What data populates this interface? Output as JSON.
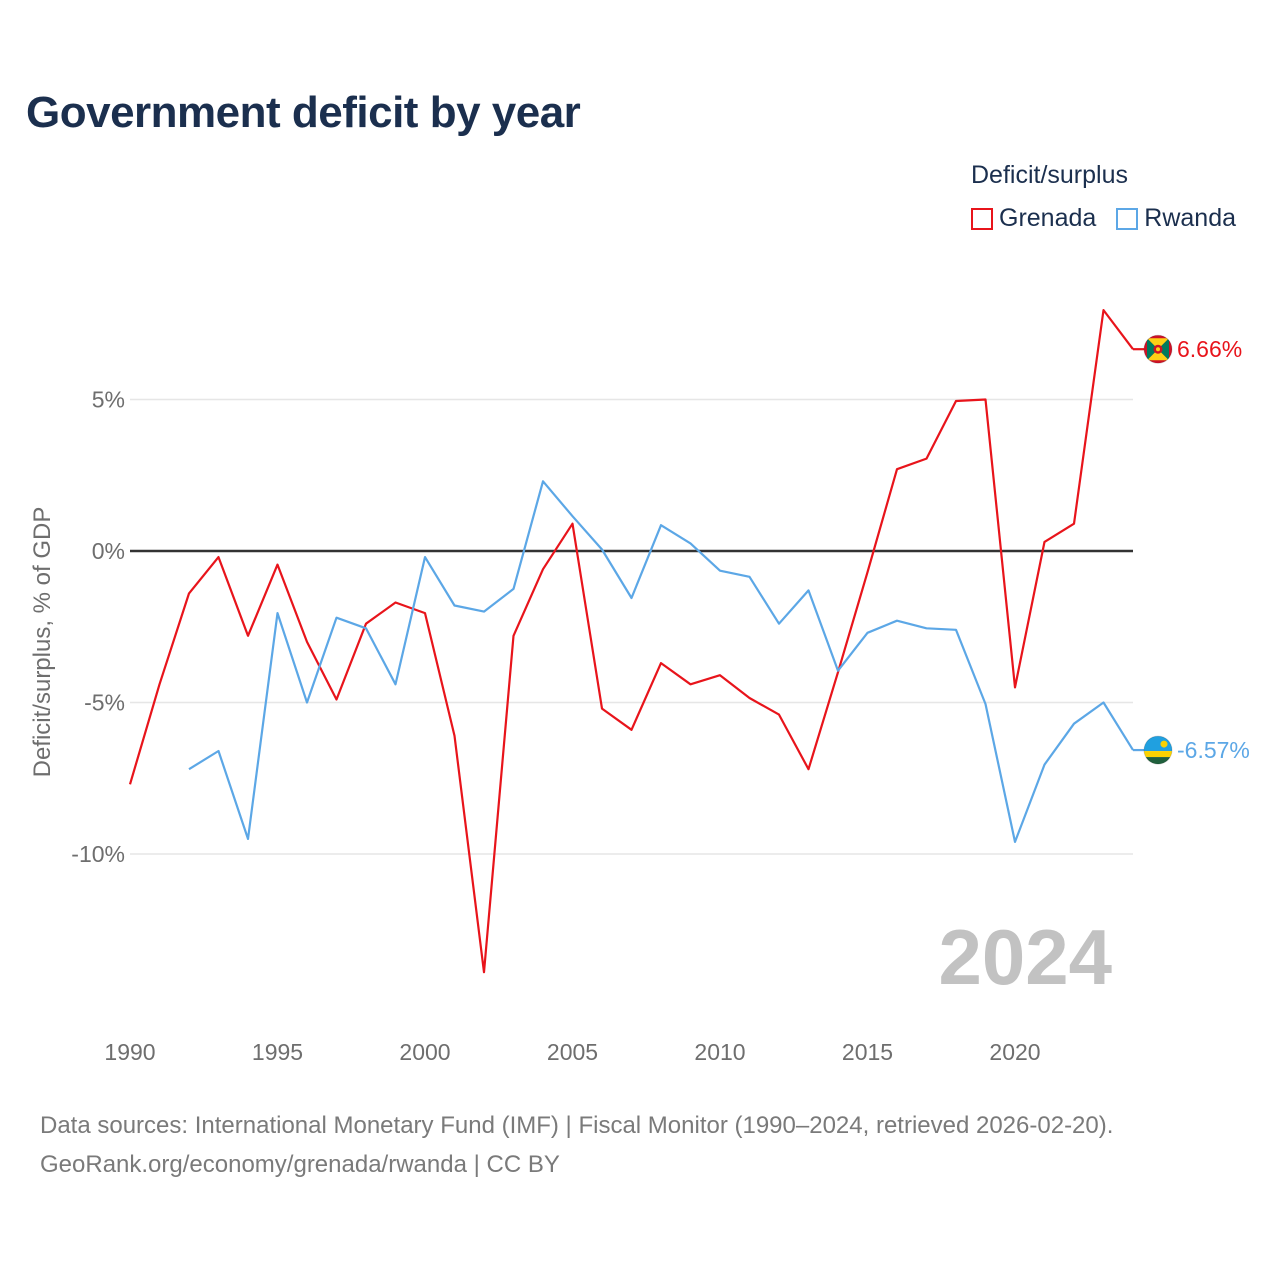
{
  "title": "Government deficit by year",
  "legend": {
    "title": "Deficit/surplus",
    "items": [
      {
        "name": "Grenada",
        "color": "#e8141b"
      },
      {
        "name": "Rwanda",
        "color": "#5ca7e6"
      }
    ]
  },
  "year_label": "2024",
  "source": {
    "line1": "Data sources: International Monetary Fund (IMF) | Fiscal Monitor (1990–2024, retrieved 2026-02-20).",
    "line2": "GeoRank.org/economy/grenada/rwanda | CC BY"
  },
  "chart_data": {
    "type": "line",
    "title": "Government deficit by year",
    "xlabel": "",
    "ylabel": "Deficit/surplus, % of GDP",
    "xlim": [
      1990,
      2024
    ],
    "ylim": [
      -15.5,
      9.5
    ],
    "x_ticks": [
      1990,
      1995,
      2000,
      2005,
      2010,
      2015,
      2020
    ],
    "y_ticks": [
      {
        "value": 5,
        "label": "5%"
      },
      {
        "value": 0,
        "label": "0%"
      },
      {
        "value": -5,
        "label": "-5%"
      },
      {
        "value": -10,
        "label": "-10%"
      }
    ],
    "zero_line": true,
    "series": [
      {
        "name": "Grenada",
        "color": "#e8141b",
        "end_label": "6.66%",
        "flag": "grenada",
        "points": [
          [
            1990,
            -7.7
          ],
          [
            1991,
            -4.4
          ],
          [
            1992,
            -1.4
          ],
          [
            1993,
            -0.2
          ],
          [
            1994,
            -2.8
          ],
          [
            1995,
            -0.45
          ],
          [
            1996,
            -3.0
          ],
          [
            1997,
            -4.9
          ],
          [
            1998,
            -2.4
          ],
          [
            1999,
            -1.7
          ],
          [
            2000,
            -2.05
          ],
          [
            2001,
            -6.1
          ],
          [
            2002,
            -13.9
          ],
          [
            2003,
            -2.8
          ],
          [
            2004,
            -0.6
          ],
          [
            2005,
            0.9
          ],
          [
            2006,
            -5.2
          ],
          [
            2007,
            -5.9
          ],
          [
            2008,
            -3.7
          ],
          [
            2009,
            -4.4
          ],
          [
            2010,
            -4.1
          ],
          [
            2011,
            -4.85
          ],
          [
            2012,
            -5.4
          ],
          [
            2013,
            -7.2
          ],
          [
            2014,
            -4.0
          ],
          [
            2015,
            -0.7
          ],
          [
            2016,
            2.7
          ],
          [
            2017,
            3.05
          ],
          [
            2018,
            4.95
          ],
          [
            2019,
            5.0
          ],
          [
            2020,
            -4.5
          ],
          [
            2021,
            0.3
          ],
          [
            2022,
            0.9
          ],
          [
            2023,
            7.95
          ],
          [
            2024,
            6.66
          ]
        ]
      },
      {
        "name": "Rwanda",
        "color": "#5ca7e6",
        "end_label": "-6.57%",
        "flag": "rwanda",
        "points": [
          [
            1992,
            -7.2
          ],
          [
            1993,
            -6.6
          ],
          [
            1994,
            -9.5
          ],
          [
            1995,
            -2.05
          ],
          [
            1996,
            -5.0
          ],
          [
            1997,
            -2.2
          ],
          [
            1998,
            -2.55
          ],
          [
            1999,
            -4.4
          ],
          [
            2000,
            -0.2
          ],
          [
            2001,
            -1.8
          ],
          [
            2002,
            -2.0
          ],
          [
            2003,
            -1.25
          ],
          [
            2004,
            2.3
          ],
          [
            2005,
            1.15
          ],
          [
            2006,
            0.05
          ],
          [
            2007,
            -1.55
          ],
          [
            2008,
            0.85
          ],
          [
            2009,
            0.25
          ],
          [
            2010,
            -0.65
          ],
          [
            2011,
            -0.85
          ],
          [
            2012,
            -2.4
          ],
          [
            2013,
            -1.3
          ],
          [
            2014,
            -3.95
          ],
          [
            2015,
            -2.7
          ],
          [
            2016,
            -2.3
          ],
          [
            2017,
            -2.55
          ],
          [
            2018,
            -2.6
          ],
          [
            2019,
            -5.05
          ],
          [
            2020,
            -9.6
          ],
          [
            2021,
            -7.05
          ],
          [
            2022,
            -5.7
          ],
          [
            2023,
            -5.0
          ],
          [
            2024,
            -6.57
          ]
        ]
      }
    ]
  }
}
